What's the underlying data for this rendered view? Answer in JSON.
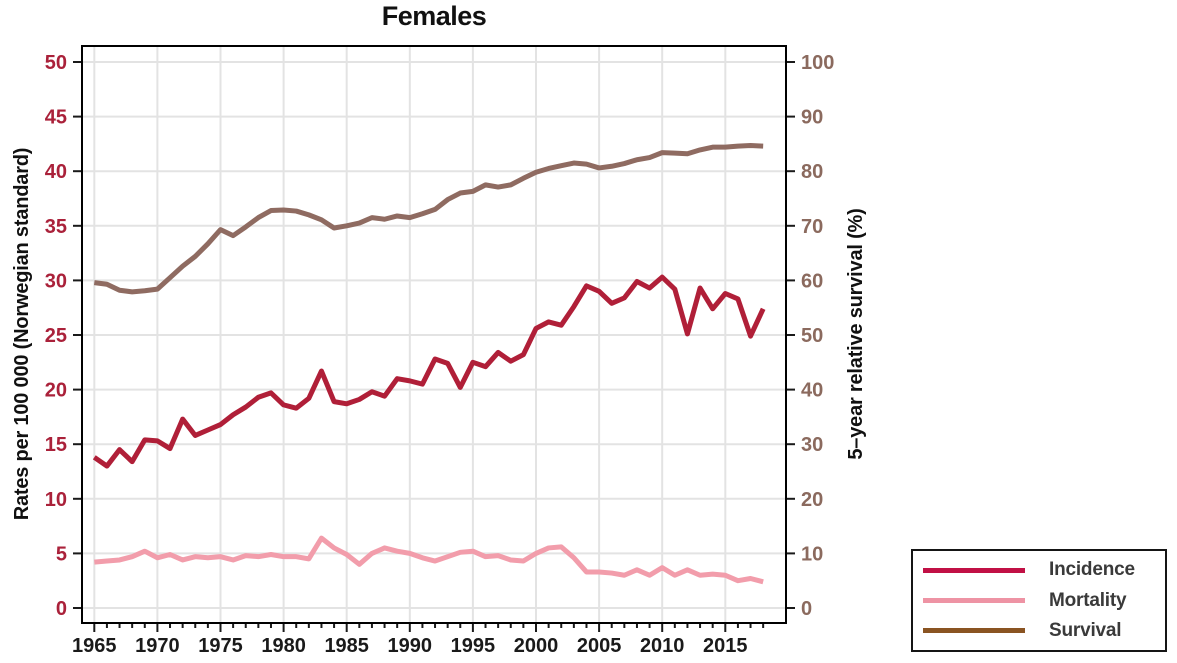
{
  "chart_data": {
    "type": "line",
    "title": "Females",
    "x": [
      1965,
      1966,
      1967,
      1968,
      1969,
      1970,
      1971,
      1972,
      1973,
      1974,
      1975,
      1976,
      1977,
      1978,
      1979,
      1980,
      1981,
      1982,
      1983,
      1984,
      1985,
      1986,
      1987,
      1988,
      1989,
      1990,
      1991,
      1992,
      1993,
      1994,
      1995,
      1996,
      1997,
      1998,
      1999,
      2000,
      2001,
      2002,
      2003,
      2004,
      2005,
      2006,
      2007,
      2008,
      2009,
      2010,
      2011,
      2012,
      2013,
      2014,
      2015,
      2016,
      2017,
      2018
    ],
    "series": [
      {
        "name": "Incidence",
        "axis": "left",
        "color": "#b01f38",
        "legend_color": "#c11045",
        "values": [
          13.8,
          13.0,
          14.5,
          13.4,
          15.4,
          15.3,
          14.6,
          17.3,
          15.8,
          16.3,
          16.8,
          17.7,
          18.4,
          19.3,
          19.7,
          18.6,
          18.3,
          19.2,
          21.7,
          18.9,
          18.7,
          19.1,
          19.8,
          19.4,
          21.0,
          20.8,
          20.5,
          22.8,
          22.4,
          20.2,
          22.5,
          22.1,
          23.4,
          22.6,
          23.2,
          25.6,
          26.2,
          25.9,
          27.6,
          29.5,
          29.0,
          27.9,
          28.4,
          29.9,
          29.3,
          30.3,
          29.2,
          25.1,
          29.3,
          27.4,
          28.8,
          28.3,
          24.9,
          27.4
        ]
      },
      {
        "name": "Mortality",
        "axis": "left",
        "color": "#f29dab",
        "legend_color": "#ee93a4",
        "values": [
          4.2,
          4.3,
          4.4,
          4.7,
          5.2,
          4.6,
          4.9,
          4.4,
          4.7,
          4.6,
          4.7,
          4.4,
          4.8,
          4.7,
          4.9,
          4.7,
          4.7,
          4.5,
          6.4,
          5.5,
          4.9,
          4.0,
          5.0,
          5.5,
          5.2,
          5.0,
          4.6,
          4.3,
          4.7,
          5.1,
          5.2,
          4.7,
          4.8,
          4.4,
          4.3,
          5.0,
          5.5,
          5.6,
          4.6,
          3.3,
          3.3,
          3.2,
          3.0,
          3.5,
          3.0,
          3.7,
          3.0,
          3.5,
          3.0,
          3.1,
          3.0,
          2.5,
          2.7,
          2.4
        ]
      },
      {
        "name": "Survival",
        "axis": "right",
        "color": "#8f6b61",
        "legend_color": "#8a5422",
        "values": [
          59.6,
          59.3,
          58.2,
          57.9,
          58.1,
          58.4,
          60.5,
          62.6,
          64.4,
          66.7,
          69.3,
          68.2,
          69.8,
          71.5,
          72.8,
          72.9,
          72.7,
          72.0,
          71.1,
          69.6,
          70.0,
          70.5,
          71.5,
          71.2,
          71.8,
          71.5,
          72.2,
          73.0,
          74.8,
          76.0,
          76.3,
          77.5,
          77.1,
          77.5,
          78.7,
          79.8,
          80.5,
          81.0,
          81.5,
          81.3,
          80.6,
          80.9,
          81.4,
          82.1,
          82.5,
          83.4,
          83.3,
          83.2,
          83.9,
          84.4,
          84.4,
          84.6,
          84.7,
          84.6
        ]
      }
    ],
    "left_axis": {
      "label": "Rates per 100 000 (Norwegian standard)",
      "ticks": [
        0,
        5,
        10,
        15,
        20,
        25,
        30,
        35,
        40,
        45,
        50
      ],
      "range": [
        0,
        50
      ],
      "tick_color": "#aa213a"
    },
    "right_axis": {
      "label": "5–year relative survival (%)",
      "ticks": [
        0,
        10,
        20,
        30,
        40,
        50,
        60,
        70,
        80,
        90,
        100
      ],
      "range": [
        0,
        100
      ],
      "tick_color": "#8b6a5e"
    },
    "x_axis": {
      "major_ticks": [
        1965,
        1970,
        1975,
        1980,
        1985,
        1990,
        1995,
        2000,
        2005,
        2010,
        2015
      ],
      "minor_step": 1,
      "range": [
        1965,
        2018
      ],
      "tick_color": "#1a1a1a"
    },
    "grid": true,
    "legend_position": "bottom-right",
    "style": {
      "background": "#ffffff",
      "grid_color": "#e3e3e3",
      "border_color": "#000000",
      "title_color": "#111111"
    }
  }
}
